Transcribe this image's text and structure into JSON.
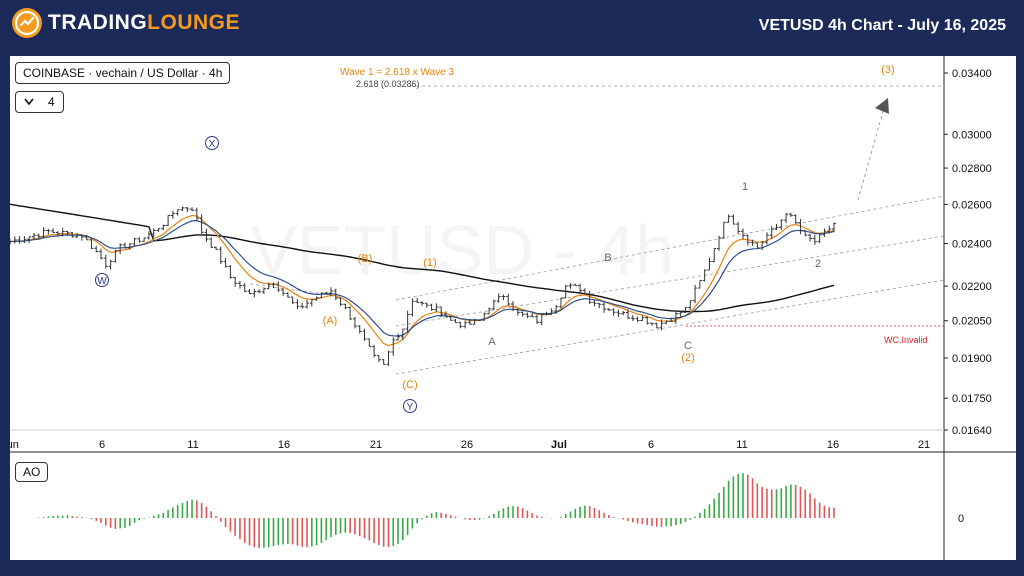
{
  "header": {
    "logo_part1": "TRADING",
    "logo_part2": "LOUNGE",
    "chart_title": "VETUSD 4h Chart - July 16, 2025"
  },
  "symbol_label": "COINBASE · vechain / US Dollar · 4h",
  "interval_value": "4",
  "ao_label": "AO",
  "colors": {
    "brand_orange": "#f39a1f",
    "header_bg": "#1c2a5a",
    "wave_orange": "#e8820c",
    "invalid_red": "#e02424",
    "ao_green": "#3aa845",
    "ao_red": "#e05656",
    "ema_blue": "#2f4f8f",
    "ema_orange": "#e8820c",
    "ma_black": "#111111"
  },
  "annotations": {
    "fib_text": "Wave 1 = 2.618 x Wave 3",
    "fib_level": "2.618 (0.03286)",
    "invalid_text": "WC.Invalid",
    "labels": [
      {
        "text": "X",
        "circled": true,
        "color": "#2a3a8a"
      },
      {
        "text": "W",
        "circled": true,
        "color": "#2a3a8a"
      },
      {
        "text": "Y",
        "circled": true,
        "color": "#2a3a8a"
      },
      {
        "text": "(A)",
        "color": "#e8820c"
      },
      {
        "text": "(B)",
        "color": "#e8820c"
      },
      {
        "text": "(C)",
        "color": "#e8820c"
      },
      {
        "text": "(1)",
        "color": "#e8820c"
      },
      {
        "text": "(2)",
        "color": "#e8820c"
      },
      {
        "text": "(3)",
        "color": "#e8820c"
      },
      {
        "text": "A",
        "color": "#666666"
      },
      {
        "text": "B",
        "color": "#666666"
      },
      {
        "text": "C",
        "color": "#666666"
      },
      {
        "text": "1",
        "color": "#666666"
      },
      {
        "text": "2",
        "color": "#666666"
      }
    ]
  },
  "chart_data": {
    "type": "candlestick",
    "title": "VETUSD 4h Chart - July 16, 2025",
    "x_tick_labels": [
      "Jun",
      "6",
      "11",
      "16",
      "21",
      "26",
      "Jul",
      "6",
      "11",
      "16",
      "21"
    ],
    "y_tick_labels": [
      "0.03400",
      "0.03000",
      "0.02800",
      "0.02600",
      "0.02400",
      "0.02200",
      "0.02050",
      "0.01900",
      "0.01750",
      "0.01640"
    ],
    "y_scale": "log",
    "ylim": [
      0.0164,
      0.0352
    ],
    "watermark": "VETUSD - 4h",
    "price_path": [
      [
        0,
        0.0241
      ],
      [
        8,
        0.0246
      ],
      [
        15,
        0.0244
      ],
      [
        18,
        0.0236
      ],
      [
        20,
        0.023
      ],
      [
        23,
        0.0238
      ],
      [
        28,
        0.0243
      ],
      [
        30,
        0.0246
      ],
      [
        32,
        0.025
      ],
      [
        35,
        0.0258
      ],
      [
        38,
        0.0258
      ],
      [
        40,
        0.0246
      ],
      [
        43,
        0.0236
      ],
      [
        46,
        0.0224
      ],
      [
        50,
        0.0216
      ],
      [
        55,
        0.0222
      ],
      [
        57,
        0.0217
      ],
      [
        60,
        0.021
      ],
      [
        63,
        0.0214
      ],
      [
        67,
        0.0218
      ],
      [
        70,
        0.021
      ],
      [
        73,
        0.02
      ],
      [
        76,
        0.019
      ],
      [
        78,
        0.0187
      ],
      [
        80,
        0.0197
      ],
      [
        82,
        0.0202
      ],
      [
        84,
        0.0214
      ],
      [
        87,
        0.0211
      ],
      [
        90,
        0.0209
      ],
      [
        92,
        0.0205
      ],
      [
        95,
        0.0203
      ],
      [
        98,
        0.0205
      ],
      [
        100,
        0.0211
      ],
      [
        103,
        0.0216
      ],
      [
        106,
        0.0208
      ],
      [
        110,
        0.0205
      ],
      [
        114,
        0.0212
      ],
      [
        116,
        0.022
      ],
      [
        119,
        0.0219
      ],
      [
        121,
        0.0214
      ],
      [
        125,
        0.021
      ],
      [
        129,
        0.0207
      ],
      [
        132,
        0.0206
      ],
      [
        135,
        0.0203
      ],
      [
        138,
        0.0206
      ],
      [
        141,
        0.021
      ],
      [
        144,
        0.0222
      ],
      [
        146,
        0.0232
      ],
      [
        148,
        0.0244
      ],
      [
        150,
        0.0255
      ],
      [
        152,
        0.0247
      ],
      [
        154,
        0.0242
      ],
      [
        156,
        0.0238
      ],
      [
        158,
        0.0244
      ],
      [
        160,
        0.0248
      ],
      [
        162,
        0.0256
      ],
      [
        164,
        0.025
      ],
      [
        166,
        0.0243
      ],
      [
        168,
        0.0241
      ],
      [
        170,
        0.0245
      ],
      [
        172,
        0.025
      ]
    ],
    "series": [
      {
        "name": "EMA fast",
        "color": "#2f4f8f"
      },
      {
        "name": "EMA slow",
        "color": "#e8820c"
      },
      {
        "name": "MA long",
        "color": "#111111"
      }
    ],
    "ao_zero_label": "0"
  }
}
